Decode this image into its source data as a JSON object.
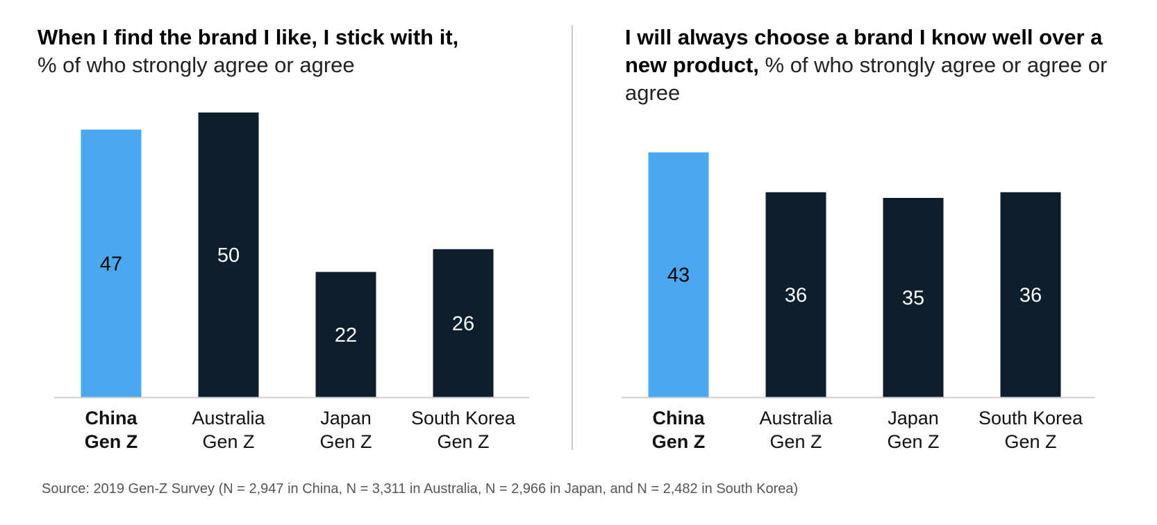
{
  "chart_data": [
    {
      "type": "bar",
      "title_bold": "When I find the brand I like, I stick with it,",
      "title_normal": "% of who strongly agree or agree",
      "categories": [
        {
          "line1": "China",
          "line2": "Gen Z",
          "highlight": true
        },
        {
          "line1": "Australia",
          "line2": "Gen Z",
          "highlight": false
        },
        {
          "line1": "Japan",
          "line2": "Gen Z",
          "highlight": false
        },
        {
          "line1": "South Korea",
          "line2": "Gen Z",
          "highlight": false
        }
      ],
      "values": [
        47,
        50,
        22,
        26
      ],
      "ylim": [
        0,
        50
      ]
    },
    {
      "type": "bar",
      "title_bold": "I will always choose a brand I know well over a new product,",
      "title_normal": "% of who strongly agree or agree or agree",
      "categories": [
        {
          "line1": "China",
          "line2": "Gen Z",
          "highlight": true
        },
        {
          "line1": "Australia",
          "line2": "Gen Z",
          "highlight": false
        },
        {
          "line1": "Japan",
          "line2": "Gen Z",
          "highlight": false
        },
        {
          "line1": "South Korea",
          "line2": "Gen Z",
          "highlight": false
        }
      ],
      "values": [
        43,
        36,
        35,
        36
      ],
      "ylim": [
        0,
        50
      ]
    }
  ],
  "colors": {
    "highlight": "#4aa8ee",
    "default": "#0d1e2c",
    "axis": "#cccccc",
    "label_on_highlight": "#000000",
    "label_on_default": "#ffffff"
  },
  "source": "Source: 2019 Gen-Z Survey (N = 2,947 in China, N = 3,311 in Australia, N = 2,966 in Japan, and N = 2,482 in South Korea)"
}
